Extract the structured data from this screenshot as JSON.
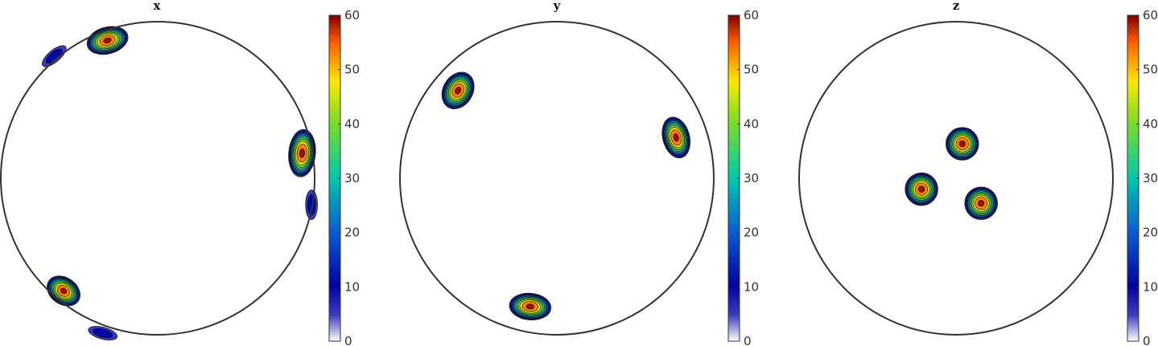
{
  "chart_data": [
    {
      "type": "contour",
      "title": "x",
      "colorbar": {
        "min": 0,
        "max": 60,
        "ticks": [
          0,
          10,
          20,
          30,
          40,
          50,
          60
        ]
      },
      "peaks": [
        {
          "cx": -0.32,
          "cy": -0.88,
          "value": 60,
          "sx": 0.07,
          "sy": 0.045,
          "angle": -15
        },
        {
          "cx": 0.92,
          "cy": -0.16,
          "value": 60,
          "sx": 0.045,
          "sy": 0.08,
          "angle": 5
        },
        {
          "cx": -0.6,
          "cy": 0.72,
          "value": 60,
          "sx": 0.06,
          "sy": 0.045,
          "angle": 35
        },
        {
          "cx": -0.66,
          "cy": -0.78,
          "value": 15,
          "sx": 0.05,
          "sy": 0.02,
          "angle": -40
        },
        {
          "cx": 0.98,
          "cy": 0.17,
          "value": 15,
          "sx": 0.02,
          "sy": 0.05,
          "angle": 0
        },
        {
          "cx": -0.35,
          "cy": 0.99,
          "value": 15,
          "sx": 0.05,
          "sy": 0.02,
          "angle": 15
        }
      ]
    },
    {
      "type": "contour",
      "title": "y",
      "colorbar": {
        "min": 0,
        "max": 60,
        "ticks": [
          0,
          10,
          20,
          30,
          40,
          50,
          60
        ]
      },
      "peaks": [
        {
          "cx": -0.63,
          "cy": -0.56,
          "value": 60,
          "sx": 0.05,
          "sy": 0.065,
          "angle": 30
        },
        {
          "cx": 0.76,
          "cy": -0.26,
          "value": 60,
          "sx": 0.045,
          "sy": 0.07,
          "angle": -15
        },
        {
          "cx": -0.17,
          "cy": 0.82,
          "value": 60,
          "sx": 0.07,
          "sy": 0.045,
          "angle": 5
        }
      ]
    },
    {
      "type": "contour",
      "title": "z",
      "colorbar": {
        "min": 0,
        "max": 60,
        "ticks": [
          0,
          10,
          20,
          30,
          40,
          50,
          60
        ]
      },
      "peaks": [
        {
          "cx": 0.04,
          "cy": -0.22,
          "value": 60,
          "sx": 0.055,
          "sy": 0.055,
          "angle": 0
        },
        {
          "cx": -0.22,
          "cy": 0.07,
          "value": 60,
          "sx": 0.055,
          "sy": 0.055,
          "angle": 0
        },
        {
          "cx": 0.16,
          "cy": 0.16,
          "value": 60,
          "sx": 0.055,
          "sy": 0.055,
          "angle": 0
        }
      ]
    }
  ]
}
